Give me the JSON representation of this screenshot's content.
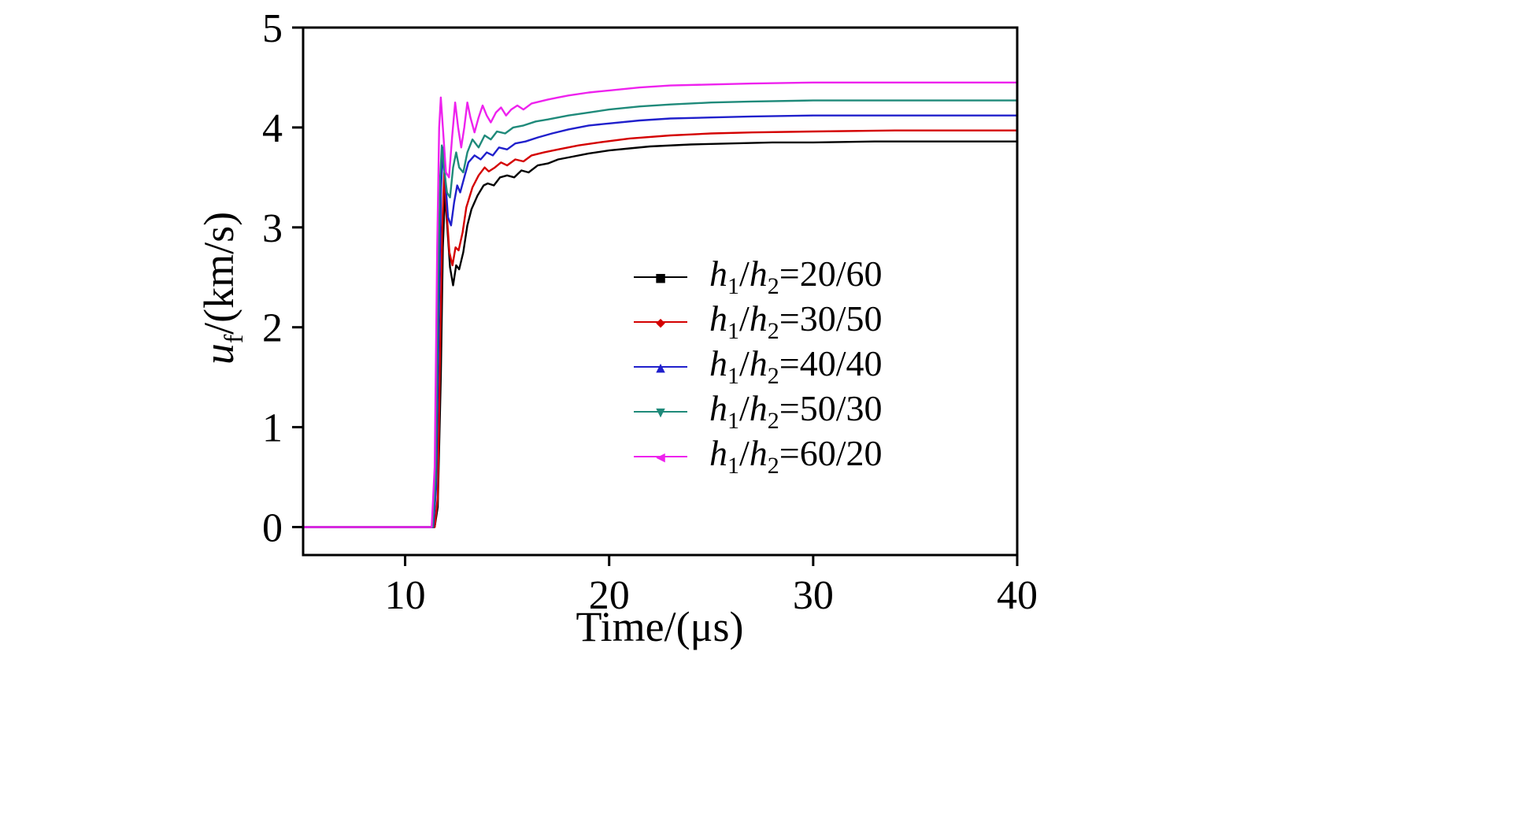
{
  "figure": {
    "xlabel": "Time/(μs)",
    "ylabel_v": "u",
    "ylabel_s": "f",
    "ylabel_rest": "/(km/s)"
  },
  "chart_data": {
    "type": "line",
    "title": "",
    "xlabel": "Time/(μs)",
    "ylabel": "u_f/(km/s)",
    "xlim": [
      5,
      40
    ],
    "ylim": [
      -0.28,
      5
    ],
    "xticks": [
      10,
      20,
      30,
      40
    ],
    "yticks": [
      0,
      1,
      2,
      3,
      4,
      5
    ],
    "grid": false,
    "legend_position": "center-right",
    "series": [
      {
        "name": "h1/h2=20/60",
        "label_parts": {
          "v1": "h",
          "s1": "1",
          "sep": "/",
          "v2": "h",
          "s2": "2",
          "val": "=20/60"
        },
        "color": "#000000",
        "marker": "square",
        "marker_glyph": "■",
        "plateau": 3.86,
        "points": [
          [
            5,
            0
          ],
          [
            11.45,
            0
          ],
          [
            11.6,
            0.2
          ],
          [
            11.75,
            1.5
          ],
          [
            11.85,
            2.8
          ],
          [
            11.95,
            3.35
          ],
          [
            12.05,
            3.05
          ],
          [
            12.2,
            2.6
          ],
          [
            12.35,
            2.42
          ],
          [
            12.5,
            2.62
          ],
          [
            12.65,
            2.58
          ],
          [
            12.85,
            2.75
          ],
          [
            13.05,
            3.02
          ],
          [
            13.25,
            3.18
          ],
          [
            13.55,
            3.32
          ],
          [
            13.85,
            3.42
          ],
          [
            14.05,
            3.44
          ],
          [
            14.35,
            3.42
          ],
          [
            14.65,
            3.5
          ],
          [
            15.0,
            3.52
          ],
          [
            15.35,
            3.5
          ],
          [
            15.7,
            3.57
          ],
          [
            16.05,
            3.55
          ],
          [
            16.5,
            3.62
          ],
          [
            17.0,
            3.64
          ],
          [
            17.5,
            3.68
          ],
          [
            18,
            3.7
          ],
          [
            19,
            3.74
          ],
          [
            20,
            3.77
          ],
          [
            21,
            3.79
          ],
          [
            22,
            3.81
          ],
          [
            24,
            3.83
          ],
          [
            26,
            3.84
          ],
          [
            28,
            3.85
          ],
          [
            30,
            3.85
          ],
          [
            33,
            3.86
          ],
          [
            36,
            3.86
          ],
          [
            40,
            3.86
          ]
        ]
      },
      {
        "name": "h1/h2=30/50",
        "label_parts": {
          "v1": "h",
          "s1": "1",
          "sep": "/",
          "v2": "h",
          "s2": "2",
          "val": "=30/50"
        },
        "color": "#d40000",
        "marker": "diamond",
        "marker_glyph": "◆",
        "plateau": 3.97,
        "points": [
          [
            5,
            0
          ],
          [
            11.45,
            0
          ],
          [
            11.6,
            0.3
          ],
          [
            11.72,
            1.8
          ],
          [
            11.82,
            3.0
          ],
          [
            11.92,
            3.55
          ],
          [
            12.02,
            3.2
          ],
          [
            12.17,
            2.75
          ],
          [
            12.32,
            2.62
          ],
          [
            12.47,
            2.8
          ],
          [
            12.62,
            2.77
          ],
          [
            12.82,
            2.95
          ],
          [
            13.0,
            3.2
          ],
          [
            13.3,
            3.4
          ],
          [
            13.6,
            3.52
          ],
          [
            13.9,
            3.6
          ],
          [
            14.1,
            3.56
          ],
          [
            14.4,
            3.6
          ],
          [
            14.7,
            3.65
          ],
          [
            15.0,
            3.62
          ],
          [
            15.4,
            3.68
          ],
          [
            15.8,
            3.66
          ],
          [
            16.2,
            3.72
          ],
          [
            16.8,
            3.75
          ],
          [
            17.5,
            3.78
          ],
          [
            18.5,
            3.82
          ],
          [
            19.5,
            3.85
          ],
          [
            21,
            3.89
          ],
          [
            23,
            3.92
          ],
          [
            25,
            3.94
          ],
          [
            27,
            3.95
          ],
          [
            30,
            3.96
          ],
          [
            34,
            3.97
          ],
          [
            40,
            3.97
          ]
        ]
      },
      {
        "name": "h1/h2=40/40",
        "label_parts": {
          "v1": "h",
          "s1": "1",
          "sep": "/",
          "v2": "h",
          "s2": "2",
          "val": "=40/40"
        },
        "color": "#2020cc",
        "marker": "triangle-up",
        "marker_glyph": "▲",
        "plateau": 4.12,
        "points": [
          [
            5,
            0
          ],
          [
            11.38,
            0
          ],
          [
            11.52,
            0.4
          ],
          [
            11.66,
            2.2
          ],
          [
            11.76,
            3.4
          ],
          [
            11.86,
            3.8
          ],
          [
            11.96,
            3.5
          ],
          [
            12.1,
            3.1
          ],
          [
            12.25,
            3.02
          ],
          [
            12.4,
            3.25
          ],
          [
            12.55,
            3.42
          ],
          [
            12.7,
            3.35
          ],
          [
            12.9,
            3.5
          ],
          [
            13.1,
            3.65
          ],
          [
            13.4,
            3.72
          ],
          [
            13.7,
            3.68
          ],
          [
            14.0,
            3.75
          ],
          [
            14.3,
            3.72
          ],
          [
            14.6,
            3.8
          ],
          [
            15.0,
            3.78
          ],
          [
            15.4,
            3.84
          ],
          [
            15.9,
            3.86
          ],
          [
            16.5,
            3.9
          ],
          [
            17.2,
            3.94
          ],
          [
            18,
            3.98
          ],
          [
            19,
            4.02
          ],
          [
            20,
            4.04
          ],
          [
            21.5,
            4.07
          ],
          [
            23,
            4.09
          ],
          [
            25,
            4.1
          ],
          [
            27,
            4.11
          ],
          [
            30,
            4.12
          ],
          [
            34,
            4.12
          ],
          [
            40,
            4.12
          ]
        ]
      },
      {
        "name": "h1/h2=50/30",
        "label_parts": {
          "v1": "h",
          "s1": "1",
          "sep": "/",
          "v2": "h",
          "s2": "2",
          "val": "=50/30"
        },
        "color": "#1f8a7a",
        "marker": "triangle-down",
        "marker_glyph": "▼",
        "plateau": 4.27,
        "points": [
          [
            5,
            0
          ],
          [
            11.35,
            0
          ],
          [
            11.5,
            0.5
          ],
          [
            11.62,
            2.5
          ],
          [
            11.72,
            3.5
          ],
          [
            11.8,
            3.82
          ],
          [
            11.9,
            3.6
          ],
          [
            12.05,
            3.35
          ],
          [
            12.2,
            3.3
          ],
          [
            12.35,
            3.6
          ],
          [
            12.5,
            3.75
          ],
          [
            12.65,
            3.6
          ],
          [
            12.85,
            3.55
          ],
          [
            13.05,
            3.75
          ],
          [
            13.3,
            3.88
          ],
          [
            13.6,
            3.8
          ],
          [
            13.9,
            3.92
          ],
          [
            14.2,
            3.88
          ],
          [
            14.5,
            3.96
          ],
          [
            14.9,
            3.94
          ],
          [
            15.3,
            4.0
          ],
          [
            15.8,
            4.02
          ],
          [
            16.4,
            4.06
          ],
          [
            17,
            4.08
          ],
          [
            18,
            4.12
          ],
          [
            19,
            4.15
          ],
          [
            20,
            4.18
          ],
          [
            21.5,
            4.21
          ],
          [
            23,
            4.23
          ],
          [
            25,
            4.25
          ],
          [
            27,
            4.26
          ],
          [
            30,
            4.27
          ],
          [
            34,
            4.27
          ],
          [
            40,
            4.27
          ]
        ]
      },
      {
        "name": "h1/h2=60/20",
        "label_parts": {
          "v1": "h",
          "s1": "1",
          "sep": "/",
          "v2": "h",
          "s2": "2",
          "val": "=60/20"
        },
        "color": "#ee22ee",
        "marker": "triangle-left",
        "marker_glyph": "◀",
        "plateau": 4.45,
        "points": [
          [
            5,
            0
          ],
          [
            11.3,
            0
          ],
          [
            11.45,
            0.6
          ],
          [
            11.57,
            2.8
          ],
          [
            11.67,
            4.0
          ],
          [
            11.75,
            4.3
          ],
          [
            11.85,
            4.0
          ],
          [
            12.0,
            3.55
          ],
          [
            12.15,
            3.5
          ],
          [
            12.3,
            3.9
          ],
          [
            12.45,
            4.25
          ],
          [
            12.6,
            4.0
          ],
          [
            12.75,
            3.8
          ],
          [
            12.9,
            4.0
          ],
          [
            13.05,
            4.25
          ],
          [
            13.2,
            4.1
          ],
          [
            13.4,
            3.95
          ],
          [
            13.6,
            4.1
          ],
          [
            13.8,
            4.22
          ],
          [
            14.0,
            4.12
          ],
          [
            14.2,
            4.05
          ],
          [
            14.45,
            4.15
          ],
          [
            14.7,
            4.2
          ],
          [
            14.95,
            4.12
          ],
          [
            15.2,
            4.18
          ],
          [
            15.5,
            4.22
          ],
          [
            15.8,
            4.18
          ],
          [
            16.2,
            4.24
          ],
          [
            16.6,
            4.26
          ],
          [
            17.0,
            4.28
          ],
          [
            17.5,
            4.3
          ],
          [
            18,
            4.32
          ],
          [
            19,
            4.35
          ],
          [
            20,
            4.37
          ],
          [
            21.5,
            4.4
          ],
          [
            23,
            4.42
          ],
          [
            25,
            4.43
          ],
          [
            27,
            4.44
          ],
          [
            30,
            4.45
          ],
          [
            34,
            4.45
          ],
          [
            40,
            4.45
          ]
        ]
      }
    ]
  }
}
